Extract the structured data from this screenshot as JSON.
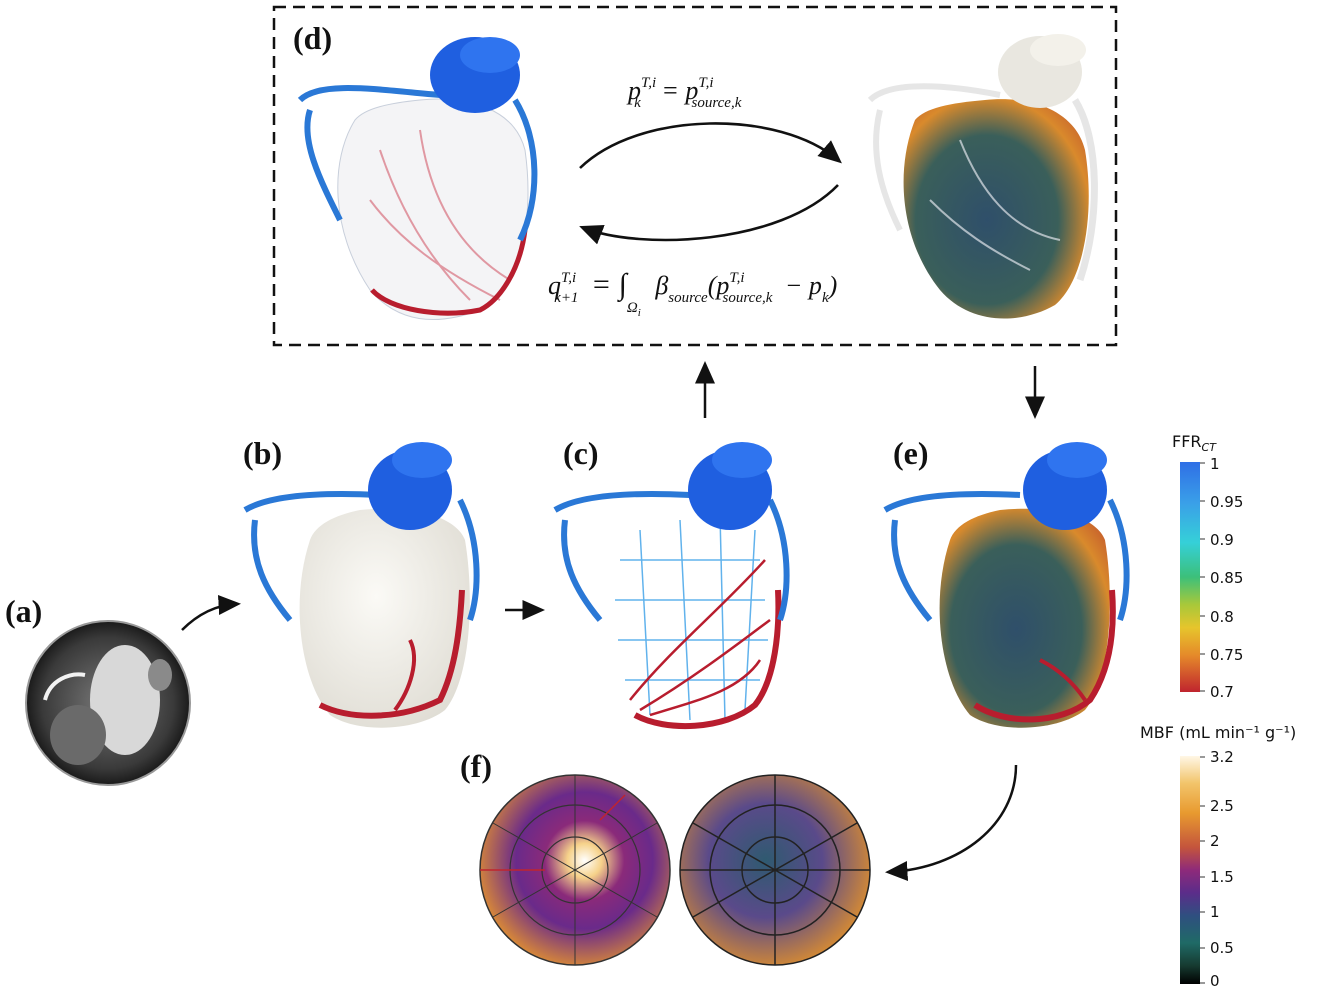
{
  "panels": {
    "a": "(a)",
    "b": "(b)",
    "c": "(c)",
    "d": "(d)",
    "e": "(e)",
    "f": "(f)"
  },
  "equations": {
    "top": {
      "lhs_base": "p",
      "lhs_sup": "T,i",
      "lhs_sub": "k",
      "rhs_base": "= p",
      "rhs_sup": "T,i",
      "rhs_sub": "source,k"
    },
    "bottom": {
      "lhs_base": "q",
      "lhs_sup": "T,i",
      "lhs_sub": "k+1",
      "integral": "= ∫",
      "int_sub": "Ω",
      "int_sub_i": "i",
      "beta": "β",
      "beta_sub": "source",
      "open": "(p",
      "p_sup": "T,i",
      "p_sub": "source,k",
      "minus": "− p",
      "pk_sub": "k",
      "close": ")"
    }
  },
  "colorbars": {
    "ffr": {
      "title_main": "FFR",
      "title_sub": "CT",
      "ticks": [
        "1",
        "0.95",
        "0.9",
        "0.85",
        "0.8",
        "0.75",
        "0.7"
      ]
    },
    "mbf": {
      "title": "MBF (mL min⁻¹ g⁻¹)",
      "ticks": [
        "3.2",
        "2.5",
        "2",
        "1.5",
        "1",
        "0.5",
        "0"
      ]
    }
  },
  "colors": {
    "aorta_blue": "#1f5fe0",
    "artery_blue": "#2a78d6",
    "artery_red": "#b81d2e",
    "myocardium_white": "#f1efe8",
    "ffr_high": "#2f6fe6",
    "ffr_low": "#c0242e",
    "mbf_low": "#000000",
    "mbf_high": "#fff7e6"
  }
}
